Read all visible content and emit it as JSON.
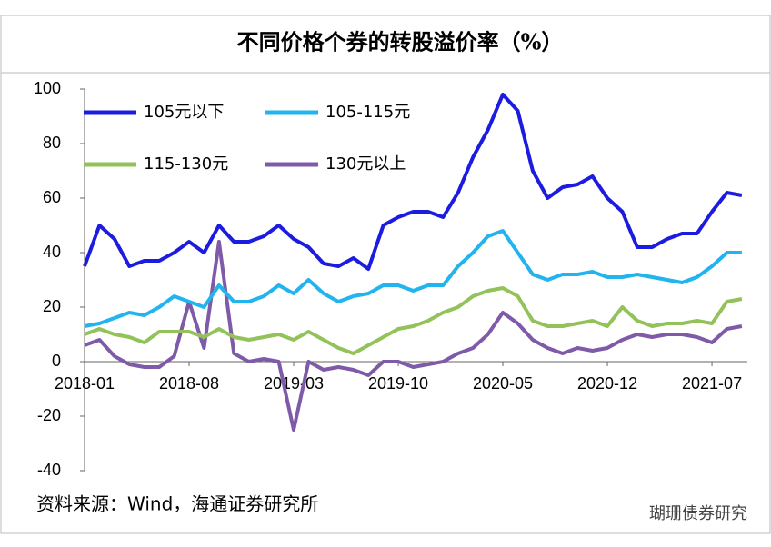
{
  "chart_data": {
    "type": "line",
    "title": "不同价格个券的转股溢价率（%）",
    "source": "资料来源：Wind，海通证券研究所",
    "watermark": "瑚珊债券研究",
    "categories": [
      "2018-01",
      null,
      null,
      null,
      null,
      null,
      null,
      "2018-08",
      null,
      null,
      null,
      null,
      null,
      null,
      "2019-03",
      null,
      null,
      null,
      null,
      null,
      null,
      "2019-10",
      null,
      null,
      null,
      null,
      null,
      null,
      "2020-05",
      null,
      null,
      null,
      null,
      null,
      null,
      "2020-12",
      null,
      null,
      null,
      null,
      null,
      null,
      "2021-07",
      null,
      null
    ],
    "ylim": [
      -40,
      100
    ],
    "yticks": [
      -40,
      -20,
      0,
      20,
      40,
      60,
      80,
      100
    ],
    "series": [
      {
        "name": "105元以下",
        "color": "#1c1ce0",
        "values": [
          35,
          50,
          45,
          35,
          37,
          37,
          40,
          44,
          40,
          50,
          44,
          44,
          46,
          50,
          45,
          42,
          36,
          35,
          38,
          34,
          50,
          53,
          55,
          55,
          53,
          62,
          75,
          85,
          98,
          92,
          70,
          60,
          64,
          65,
          68,
          60,
          55,
          42,
          42,
          45,
          47,
          47,
          55,
          62,
          61
        ]
      },
      {
        "name": "105-115元",
        "color": "#22b4ee",
        "values": [
          13,
          14,
          16,
          18,
          17,
          20,
          24,
          22,
          20,
          28,
          22,
          22,
          24,
          28,
          25,
          30,
          25,
          22,
          24,
          25,
          28,
          28,
          26,
          28,
          28,
          35,
          40,
          46,
          48,
          40,
          32,
          30,
          32,
          32,
          33,
          31,
          31,
          32,
          31,
          30,
          29,
          31,
          35,
          40,
          40
        ]
      },
      {
        "name": "115-130元",
        "color": "#93c15a",
        "values": [
          10,
          12,
          10,
          9,
          7,
          11,
          11,
          11,
          9,
          12,
          9,
          8,
          9,
          10,
          8,
          11,
          8,
          5,
          3,
          6,
          9,
          12,
          13,
          15,
          18,
          20,
          24,
          26,
          27,
          24,
          15,
          13,
          13,
          14,
          15,
          13,
          20,
          15,
          13,
          14,
          14,
          15,
          14,
          22,
          23
        ]
      },
      {
        "name": "130元以上",
        "color": "#7e5aa8",
        "values": [
          6,
          8,
          2,
          -1,
          -2,
          -2,
          2,
          22,
          5,
          44,
          3,
          0,
          1,
          0,
          -25,
          0,
          -3,
          -2,
          -3,
          -5,
          0,
          0,
          -2,
          -1,
          0,
          3,
          5,
          10,
          18,
          14,
          8,
          5,
          3,
          5,
          4,
          5,
          8,
          10,
          9,
          10,
          10,
          9,
          7,
          12,
          13
        ]
      }
    ]
  }
}
